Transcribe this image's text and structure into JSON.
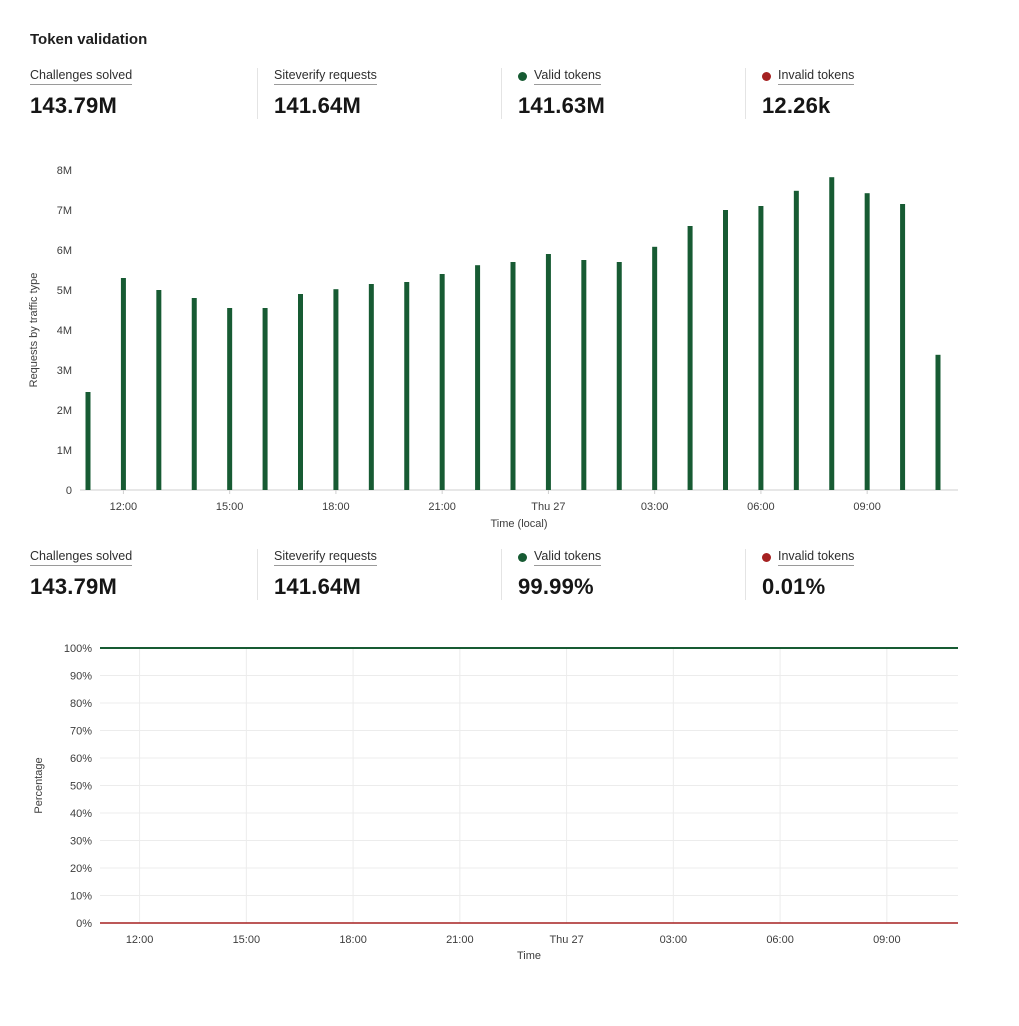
{
  "title": "Token validation",
  "colors": {
    "green": "#175b33",
    "red": "#a52121",
    "axis": "#cfcfcf",
    "grid": "#ececec",
    "tick_text": "#3d3d3d"
  },
  "stats_top": [
    {
      "label": "Challenges solved",
      "value": "143.79M",
      "dot": ""
    },
    {
      "label": "Siteverify requests",
      "value": "141.64M",
      "dot": ""
    },
    {
      "label": "Valid tokens",
      "value": "141.63M",
      "dot": "green"
    },
    {
      "label": "Invalid tokens",
      "value": "12.26k",
      "dot": "red"
    }
  ],
  "stats_bottom": [
    {
      "label": "Challenges solved",
      "value": "143.79M",
      "dot": ""
    },
    {
      "label": "Siteverify requests",
      "value": "141.64M",
      "dot": ""
    },
    {
      "label": "Valid tokens",
      "value": "99.99%",
      "dot": "green"
    },
    {
      "label": "Invalid tokens",
      "value": "0.01%",
      "dot": "red"
    }
  ],
  "chart_data": [
    {
      "type": "bar",
      "ylabel": "Requests by traffic type",
      "xlabel": "Time (local)",
      "ylim": [
        0,
        8000000
      ],
      "ytick_labels": [
        "0",
        "1M",
        "2M",
        "3M",
        "4M",
        "5M",
        "6M",
        "7M",
        "8M"
      ],
      "values": [
        2450000,
        5300000,
        5000000,
        4800000,
        4550000,
        4550000,
        4900000,
        5020000,
        5150000,
        5200000,
        5400000,
        5620000,
        5700000,
        5900000,
        5750000,
        5700000,
        6080000,
        6600000,
        7000000,
        7100000,
        7480000,
        7820000,
        7420000,
        7150000,
        3380000
      ],
      "xticks": [
        {
          "index": 1,
          "label": "12:00"
        },
        {
          "index": 4,
          "label": "15:00"
        },
        {
          "index": 7,
          "label": "18:00"
        },
        {
          "index": 10,
          "label": "21:00"
        },
        {
          "index": 13,
          "label": "Thu 27"
        },
        {
          "index": 16,
          "label": "03:00"
        },
        {
          "index": 19,
          "label": "06:00"
        },
        {
          "index": 22,
          "label": "09:00"
        }
      ],
      "bar_color_key": "green",
      "grid": false,
      "legend": "none"
    },
    {
      "type": "line",
      "ylabel": "Percentage",
      "xlabel": "Time",
      "ylim": [
        0,
        100
      ],
      "ytick_labels": [
        "0%",
        "10%",
        "20%",
        "30%",
        "40%",
        "50%",
        "60%",
        "70%",
        "80%",
        "90%",
        "100%"
      ],
      "n_points": 25,
      "xticks": [
        {
          "index": 1,
          "label": "12:00"
        },
        {
          "index": 4,
          "label": "15:00"
        },
        {
          "index": 7,
          "label": "18:00"
        },
        {
          "index": 10,
          "label": "21:00"
        },
        {
          "index": 13,
          "label": "Thu 27"
        },
        {
          "index": 16,
          "label": "03:00"
        },
        {
          "index": 19,
          "label": "06:00"
        },
        {
          "index": 22,
          "label": "09:00"
        }
      ],
      "series": [
        {
          "name": "Valid tokens",
          "color_key": "green",
          "value": 99.99
        },
        {
          "name": "Invalid tokens",
          "color_key": "red",
          "value": 0.01
        }
      ],
      "grid": true,
      "legend": "none"
    }
  ]
}
